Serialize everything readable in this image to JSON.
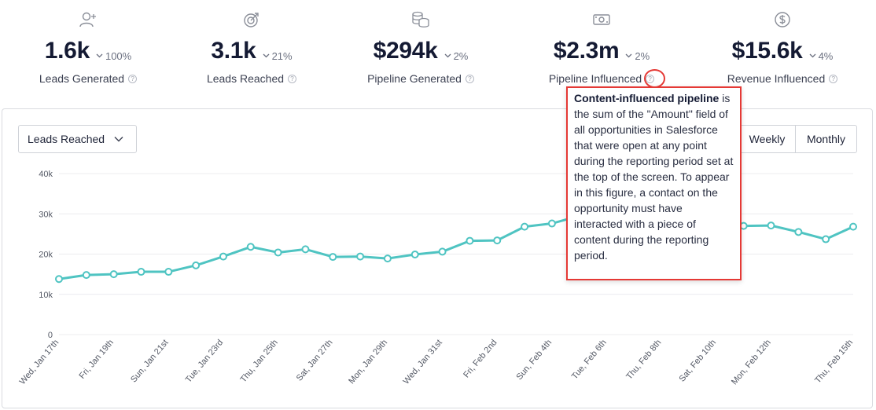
{
  "kpis": [
    {
      "id": "leads-generated",
      "value": "1.6k",
      "delta": "100%",
      "label": "Leads Generated"
    },
    {
      "id": "leads-reached",
      "value": "3.1k",
      "delta": "21%",
      "label": "Leads Reached"
    },
    {
      "id": "pipeline-generated",
      "value": "$294k",
      "delta": "2%",
      "label": "Pipeline Generated"
    },
    {
      "id": "pipeline-influenced",
      "value": "$2.3m",
      "delta": "2%",
      "label": "Pipeline Influenced"
    },
    {
      "id": "revenue-influenced",
      "value": "$15.6k",
      "delta": "4%",
      "label": "Revenue Influenced"
    }
  ],
  "controls": {
    "metric_select": "Leads Reached",
    "weekly_label": "Weekly",
    "monthly_label": "Monthly"
  },
  "tooltip": {
    "title": "Content-influenced pipeline",
    "body": " is the sum of the \"Amount\" field of all opportunities in Salesforce that were open at any point during the reporting period set at the top of the screen. To appear in this figure, a contact on the opportunity must have interacted with a piece of content during the reporting period."
  },
  "colors": {
    "line": "#4fc4c2",
    "grid": "#ececef",
    "highlight": "#e53935"
  },
  "chart_data": {
    "type": "line",
    "title": "",
    "xlabel": "",
    "ylabel": "",
    "ylim": [
      0,
      40000
    ],
    "yticks": [
      "0",
      "10k",
      "20k",
      "30k",
      "40k"
    ],
    "x": [
      "Wed, Jan 17th",
      "Thu, Jan 18th",
      "Fri, Jan 19th",
      "Sat, Jan 20th",
      "Sun, Jan 21st",
      "Mon, Jan 22nd",
      "Tue, Jan 23rd",
      "Wed, Jan 24th",
      "Thu, Jan 25th",
      "Fri, Jan 26th",
      "Sat, Jan 27th",
      "Sun, Jan 28th",
      "Mon, Jan 29th",
      "Tue, Jan 30th",
      "Wed, Jan 31st",
      "Thu, Feb 1st",
      "Fri, Feb 2nd",
      "Sat, Feb 3rd",
      "Sun, Feb 4th",
      "Mon, Feb 5th",
      "Tue, Feb 6th",
      "Wed, Feb 7th",
      "Thu, Feb 8th",
      "Fri, Feb 9th",
      "Sat, Feb 10th",
      "Sun, Feb 11th",
      "Mon, Feb 12th",
      "Tue, Feb 13th",
      "Wed, Feb 14th",
      "Thu, Feb 15th"
    ],
    "xticks_shown": [
      "Wed, Jan 17th",
      "Fri, Jan 19th",
      "Sun, Jan 21st",
      "Tue, Jan 23rd",
      "Thu, Jan 25th",
      "Sat, Jan 27th",
      "Mon, Jan 29th",
      "Wed, Jan 31st",
      "Fri, Feb 2nd",
      "Sun, Feb 4th",
      "Tue, Feb 6th",
      "Thu, Feb 8th",
      "Sat, Feb 10th",
      "Mon, Feb 12th",
      "Thu, Feb 15th"
    ],
    "series": [
      {
        "name": "Leads Reached",
        "values": [
          13800,
          14800,
          15000,
          15600,
          15600,
          17200,
          19400,
          21800,
          20400,
          21200,
          19300,
          19400,
          18900,
          19900,
          20600,
          23300,
          23400,
          26800,
          27600,
          29500,
          30500,
          30000,
          29000,
          28500,
          27500,
          27000,
          27100,
          25500,
          23700,
          26800
        ]
      }
    ],
    "legend": "none",
    "grid": true
  }
}
